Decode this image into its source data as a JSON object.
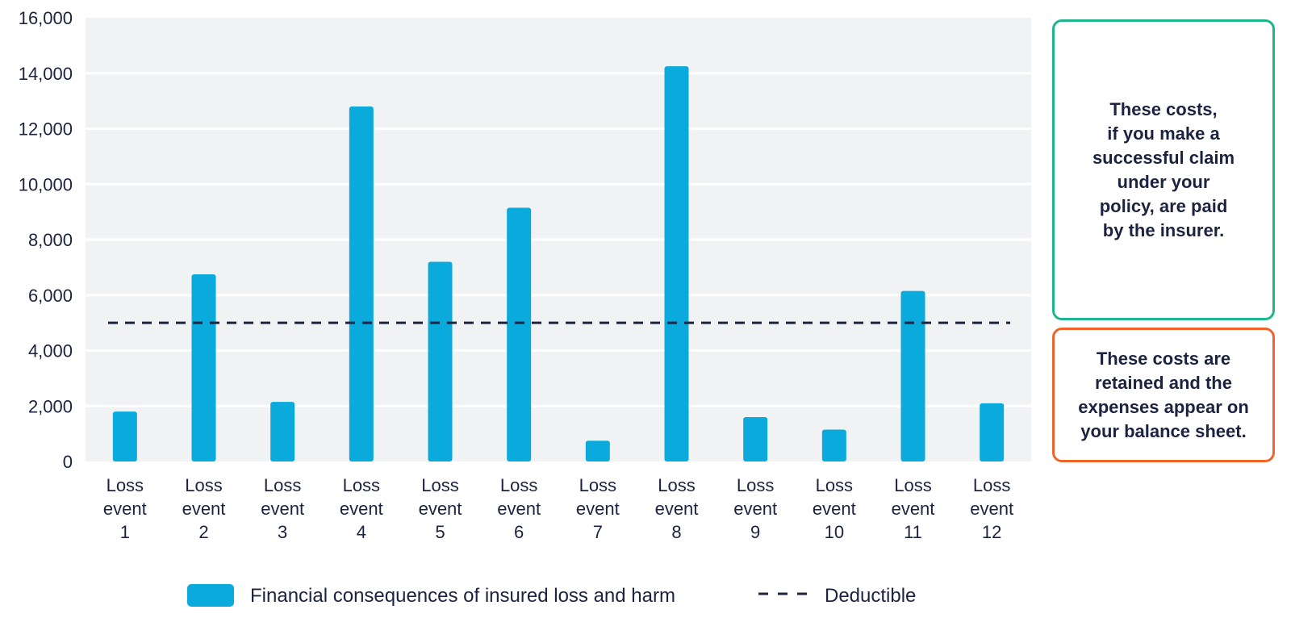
{
  "chart_data": {
    "type": "bar",
    "categories": [
      "Loss event 1",
      "Loss event 2",
      "Loss event 3",
      "Loss event 4",
      "Loss event 5",
      "Loss event 6",
      "Loss event 7",
      "Loss event 8",
      "Loss event 9",
      "Loss event 10",
      "Loss event 11",
      "Loss event 12"
    ],
    "series": [
      {
        "name": "Financial consequences of insured loss and harm",
        "values": [
          1800,
          6750,
          2150,
          12800,
          7200,
          9150,
          750,
          14250,
          1600,
          1150,
          6150,
          2100
        ],
        "color": "#0aabdc"
      }
    ],
    "reference_lines": [
      {
        "name": "Deductible",
        "value": 5000,
        "style": "dashed",
        "color": "#1c2340"
      }
    ],
    "yticks": [
      "0",
      "2,000",
      "4,000",
      "6,000",
      "8,000",
      "10,000",
      "12,000",
      "14,000",
      "16,000"
    ],
    "ylim": [
      0,
      16000
    ],
    "ytick_step": 2000,
    "grid": true,
    "plot_background": "#f1f2f4",
    "legend_placement": "bottom",
    "annotations": [
      {
        "text": "These costs,\nif you make a\nsuccessful claim\nunder your\npolicy, are paid\nby the insurer.",
        "border_color": "#1fb58f"
      },
      {
        "text": "These costs are\nretained and the\nexpenses appear on\nyour balance sheet.",
        "border_color": "#f0642c"
      }
    ],
    "title": "",
    "xlabel": "",
    "ylabel": ""
  },
  "legend": {
    "bar_label": "Financial consequences of insured loss and harm",
    "line_label": "Deductible"
  }
}
